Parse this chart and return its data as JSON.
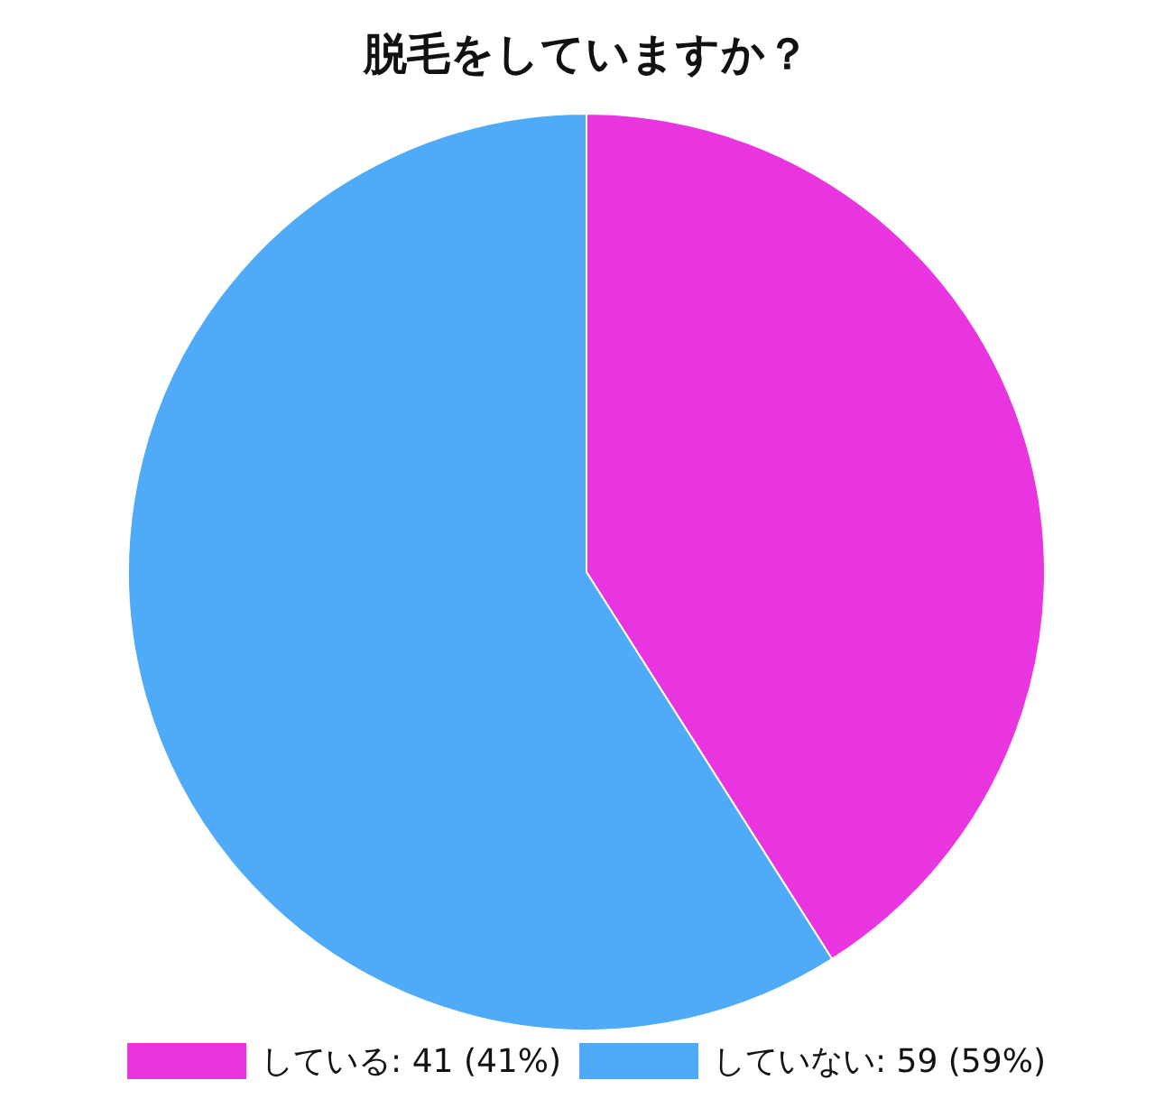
{
  "chart_data": {
    "type": "pie",
    "title": "脱毛をしていますか？",
    "categories": [
      "している",
      "していない"
    ],
    "values": [
      41,
      59
    ],
    "value_labels": [
      "41 (41%)",
      "59 (59%)"
    ],
    "colors": [
      "#e935e0",
      "#4faaf7"
    ],
    "legend": "bottom"
  }
}
